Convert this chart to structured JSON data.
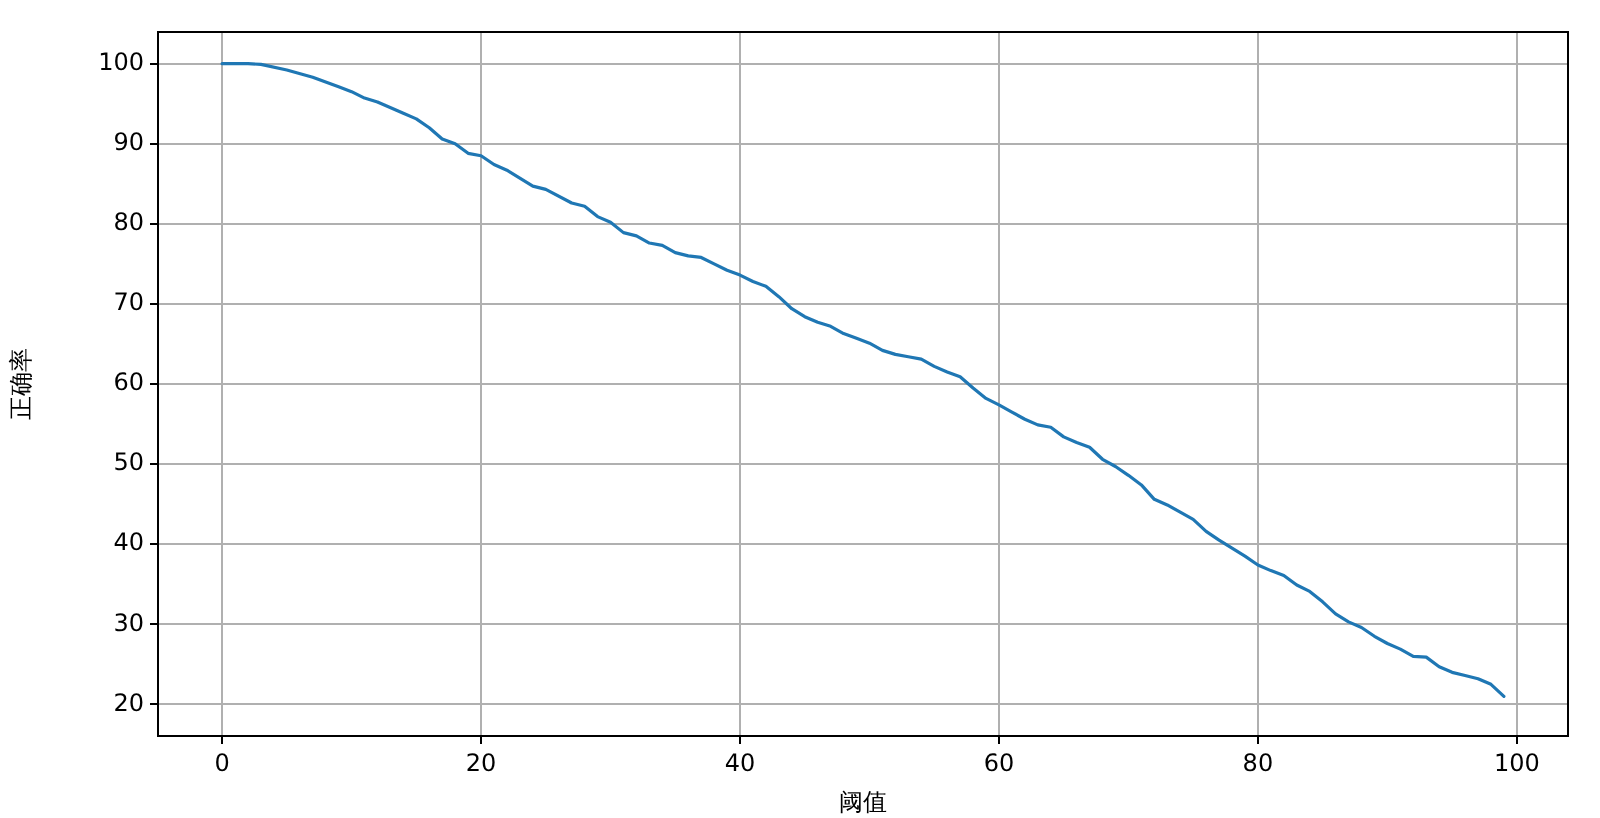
{
  "chart_data": {
    "type": "line",
    "xlabel": "阈值",
    "ylabel": "正确率",
    "x": [
      0,
      2,
      3,
      5,
      7,
      9,
      10,
      11,
      12,
      14,
      15,
      16,
      17,
      18,
      19,
      20,
      21,
      22,
      24,
      25,
      27,
      28,
      29,
      30,
      31,
      32,
      33,
      34,
      35,
      36,
      37,
      38,
      39,
      40,
      41,
      42,
      43,
      44,
      45,
      46,
      47,
      48,
      49,
      50,
      51,
      52,
      53,
      54,
      55,
      56,
      57,
      58,
      59,
      60,
      61,
      62,
      63,
      64,
      65,
      66,
      67,
      68,
      69,
      70,
      71,
      72,
      73,
      74,
      75,
      76,
      77,
      78,
      79,
      80,
      81,
      82,
      83,
      84,
      85,
      86,
      87,
      88,
      89,
      90,
      91,
      92,
      93,
      94,
      95,
      96,
      97,
      98,
      99
    ],
    "series": [
      {
        "color": "#1f77b4",
        "values": [
          100,
          100,
          99.9,
          99.2,
          98.3,
          97.1,
          96.5,
          95.7,
          95.2,
          93.8,
          93.1,
          92.0,
          90.6,
          90.0,
          88.8,
          88.5,
          87.4,
          86.7,
          84.7,
          84.3,
          82.6,
          82.2,
          80.9,
          80.2,
          78.9,
          78.5,
          77.6,
          77.3,
          76.4,
          76.0,
          75.8,
          75.0,
          74.2,
          73.6,
          72.8,
          72.2,
          70.9,
          69.4,
          68.4,
          67.7,
          67.2,
          66.3,
          65.7,
          65.1,
          64.2,
          63.7,
          63.4,
          63.1,
          62.2,
          61.5,
          60.9,
          59.5,
          58.2,
          57.4,
          56.5,
          55.6,
          54.9,
          54.6,
          53.4,
          52.7,
          52.1,
          50.6,
          49.7,
          48.6,
          47.4,
          45.6,
          44.9,
          44.0,
          43.1,
          41.6,
          40.5,
          39.5,
          38.5,
          37.4,
          36.7,
          36.1,
          34.9,
          34.1,
          32.8,
          31.3,
          30.3,
          29.6,
          28.5,
          27.6,
          26.9,
          26.0,
          25.9,
          24.7,
          24.0,
          23.6,
          23.2,
          22.5,
          21.0
        ]
      }
    ],
    "xlim": [
      -4.95,
      103.95
    ],
    "ylim": [
      16.05,
      103.95
    ],
    "xticks": [
      0,
      20,
      40,
      60,
      80,
      100
    ],
    "yticks": [
      20,
      30,
      40,
      50,
      60,
      70,
      80,
      90,
      100
    ],
    "grid": true,
    "legend": false,
    "marker": "none",
    "line_style": "solid"
  }
}
